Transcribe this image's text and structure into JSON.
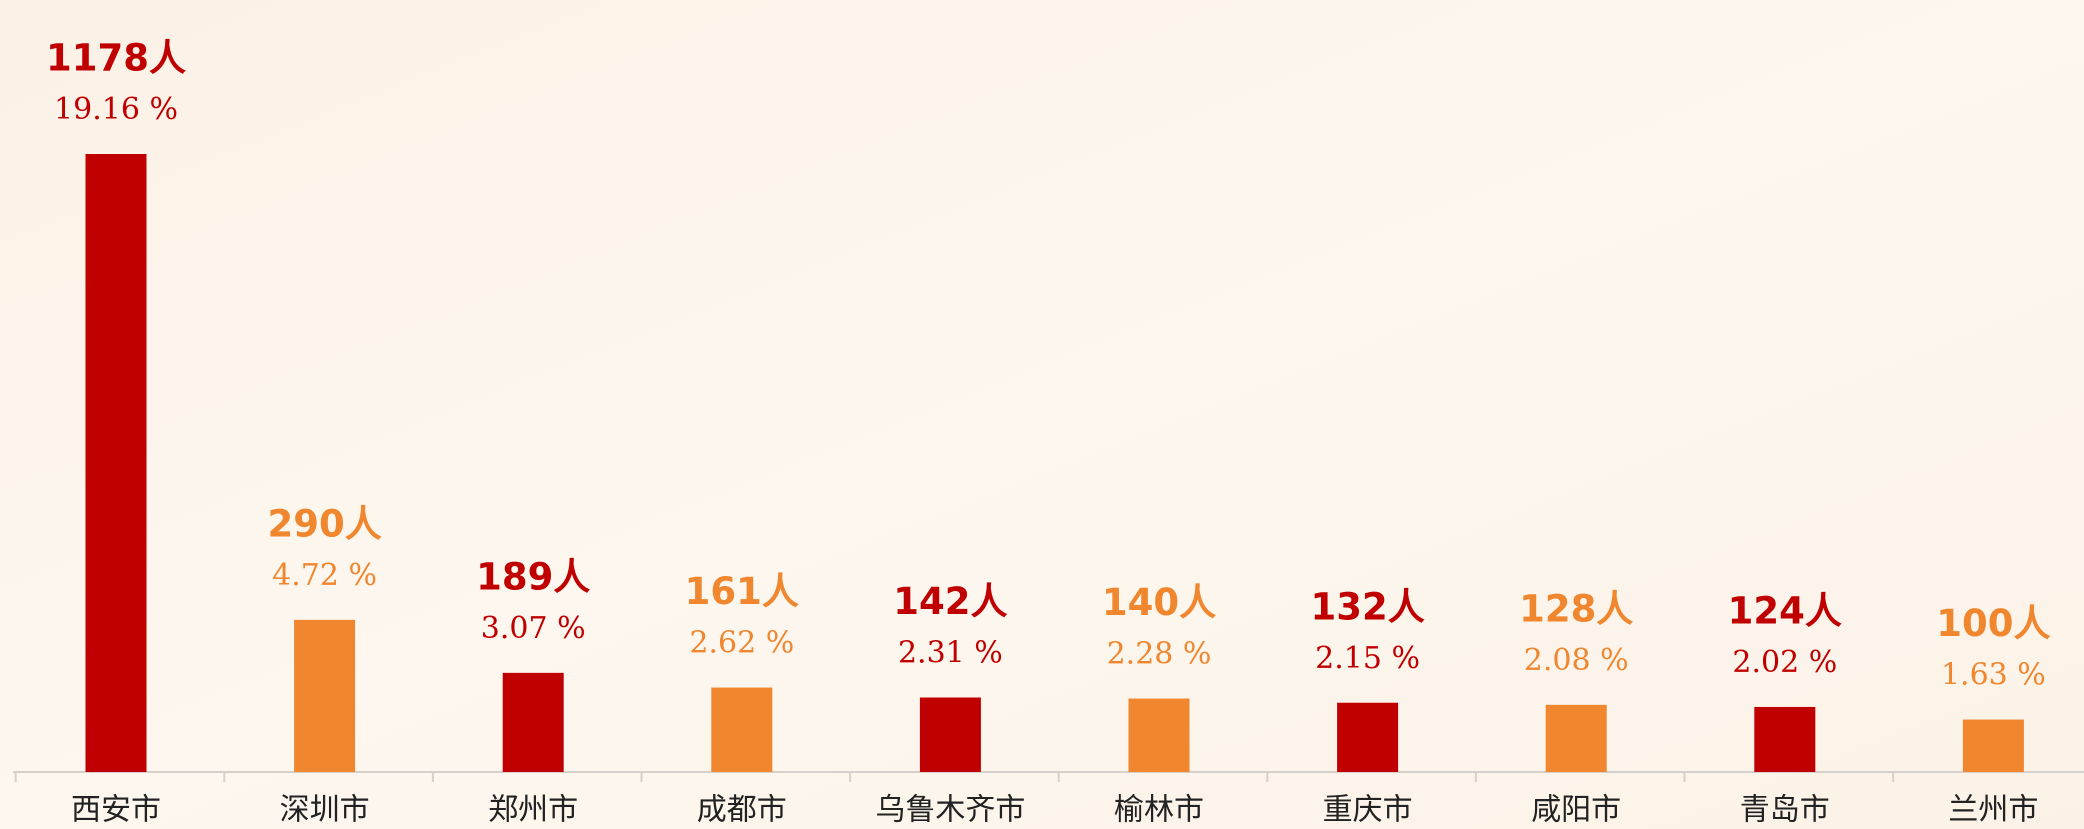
{
  "chart_data": {
    "type": "bar",
    "categories": [
      "西安市",
      "深圳市",
      "郑州市",
      "成都市",
      "乌鲁木齐市",
      "榆林市",
      "重庆市",
      "咸阳市",
      "青岛市",
      "兰州市"
    ],
    "values": [
      1178,
      290,
      189,
      161,
      142,
      140,
      132,
      128,
      124,
      100
    ],
    "value_labels": [
      "1178人",
      "290人",
      "189人",
      "161人",
      "142人",
      "140人",
      "132人",
      "128人",
      "124人",
      "100人"
    ],
    "shares": [
      19.16,
      4.72,
      3.07,
      2.62,
      2.31,
      2.28,
      2.15,
      2.08,
      2.02,
      1.63
    ],
    "share_labels": [
      "19.16 %",
      "4.72 %",
      "3.07 %",
      "2.62 %",
      "2.31 %",
      "2.28 %",
      "2.15 %",
      "2.08 %",
      "2.02 %",
      "1.63 %"
    ],
    "colors": [
      "#c00000",
      "#f0862e",
      "#c00000",
      "#f0862e",
      "#c00000",
      "#f0862e",
      "#c00000",
      "#f0862e",
      "#c00000",
      "#f0862e"
    ]
  }
}
